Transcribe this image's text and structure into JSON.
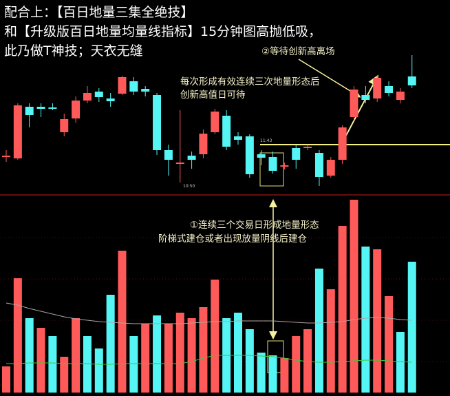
{
  "chart_data": {
    "type": "candlestick",
    "title_lines": [
      "配合上：【百日地量三集全绝技】",
      "和【升级版百日地量均量线指标】15分钟图高抛低吸，",
      "此乃做T神技；天衣无缝"
    ],
    "annotations": [
      "②等待创新高离场",
      "每次形成有效连续三次地量形态后",
      "创新高值日可待",
      "①连续三个交易日形成地量形态",
      "阶梯式建仓或者出现放量阴线后建仓",
      "11:43",
      "10:50"
    ],
    "up_color": "#ff5a5a",
    "down_color": "#55f5f5",
    "ylim": [
      0,
      220
    ],
    "candles": {
      "open": [
        52,
        50,
        125,
        125,
        124,
        88,
        108,
        134,
        147,
        137,
        144,
        162,
        151,
        142,
        62,
        42,
        54,
        56,
        88,
        112,
        82,
        82,
        56,
        52,
        38,
        65,
        65,
        58,
        25,
        48,
        110,
        142,
        137,
        155,
        135,
        169
      ],
      "high": [
        62,
        130,
        130,
        130,
        130,
        115,
        140,
        155,
        152,
        145,
        170,
        168,
        155,
        145,
        70,
        120,
        60,
        92,
        122,
        120,
        88,
        85,
        62,
        60,
        44,
        70,
        70,
        62,
        52,
        98,
        155,
        155,
        170,
        162,
        152,
        200
      ],
      "low": [
        45,
        48,
        95,
        110,
        120,
        82,
        102,
        130,
        132,
        125,
        142,
        142,
        140,
        55,
        25,
        15,
        35,
        50,
        85,
        62,
        70,
        22,
        40,
        28,
        34,
        35,
        62,
        10,
        22,
        42,
        105,
        130,
        132,
        140,
        130,
        152
      ],
      "close": [
        54,
        127,
        113,
        122,
        122,
        107,
        134,
        145,
        139,
        133,
        168,
        147,
        147,
        62,
        48,
        44,
        48,
        86,
        118,
        67,
        77,
        27,
        51,
        32,
        40,
        48,
        67,
        23,
        48,
        95,
        150,
        135,
        167,
        145,
        147,
        156
      ]
    },
    "volume": {
      "ylim": [
        0,
        290
      ],
      "values": [
        38,
        166,
        108,
        94,
        82,
        52,
        108,
        82,
        64,
        142,
        206,
        82,
        100,
        112,
        100,
        116,
        108,
        124,
        164,
        108,
        116,
        92,
        58,
        54,
        50,
        82,
        92,
        180,
        150,
        242,
        280,
        212,
        208,
        140,
        88,
        190
      ],
      "colors": [
        "#ff5a5a",
        "#ff5a5a",
        "#55f5f5",
        "#ff5a5a",
        "#55f5f5",
        "#ff5a5a",
        "#ff5a5a",
        "#55f5f5",
        "#55f5f5",
        "#55f5f5",
        "#ff5a5a",
        "#55f5f5",
        "#ff5a5a",
        "#55f5f5",
        "#ff5a5a",
        "#ff5a5a",
        "#ff5a5a",
        "#ff5a5a",
        "#ff5a5a",
        "#55f5f5",
        "#55f5f5",
        "#55f5f5",
        "#55f5f5",
        "#55f5f5",
        "#ff5a5a",
        "#ff5a5a",
        "#ff5a5a",
        "#55f5f5",
        "#ff5a5a",
        "#ff5a5a",
        "#ff5a5a",
        "#55f5f5",
        "#ff5a5a",
        "#ff5a5a",
        "#55f5f5",
        "#55f5f5"
      ],
      "ma": [
        {
          "color": "#a8a8a8",
          "values": [
            130,
            127,
            122,
            118,
            114,
            110,
            107,
            105,
            103,
            102,
            101,
            100,
            100,
            100,
            100,
            100,
            101,
            102,
            103,
            103,
            104,
            104,
            104,
            104,
            103,
            102,
            101,
            101,
            102,
            103,
            106,
            108,
            109,
            108,
            106,
            105
          ]
        },
        {
          "color": "#3cc83c",
          "values": [
            42,
            42,
            43,
            43,
            43,
            42,
            42,
            42,
            41,
            41,
            42,
            42,
            42,
            42,
            42,
            42,
            45,
            50,
            54,
            54,
            54,
            54,
            53,
            52,
            50,
            47,
            45,
            44,
            44,
            45,
            46,
            47,
            47,
            46,
            45,
            44
          ]
        }
      ]
    }
  }
}
